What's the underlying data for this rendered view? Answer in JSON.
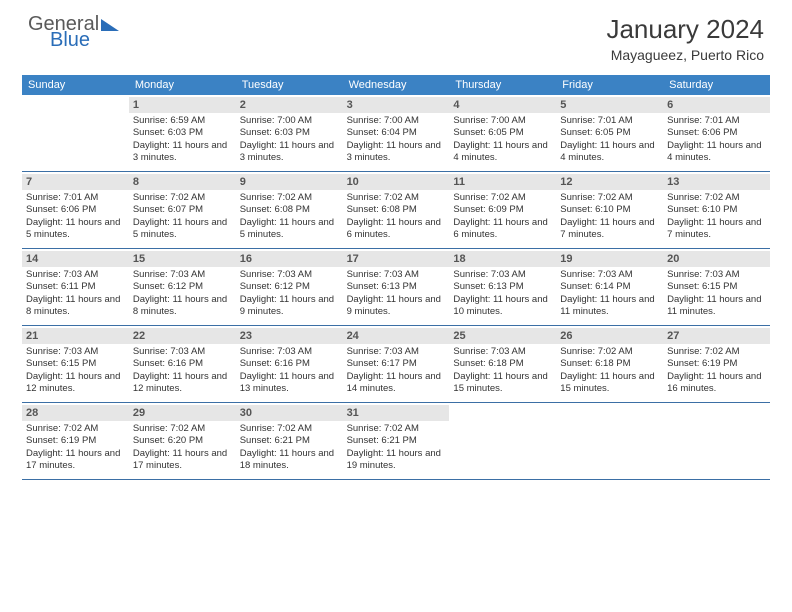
{
  "logo": {
    "top": "General",
    "bottom": "Blue"
  },
  "title": "January 2024",
  "subtitle": "Mayagueez, Puerto Rico",
  "colors": {
    "header_bg": "#3b82c4",
    "header_text": "#ffffff",
    "daynum_bg": "#e6e6e6",
    "week_border": "#3b6fa5",
    "logo_gray": "#5a5a5a",
    "logo_blue": "#2a6db8"
  },
  "day_names": [
    "Sunday",
    "Monday",
    "Tuesday",
    "Wednesday",
    "Thursday",
    "Friday",
    "Saturday"
  ],
  "weeks": [
    [
      {
        "day": "",
        "sunrise": "",
        "sunset": "",
        "daylight": ""
      },
      {
        "day": "1",
        "sunrise": "6:59 AM",
        "sunset": "6:03 PM",
        "daylight": "11 hours and 3 minutes."
      },
      {
        "day": "2",
        "sunrise": "7:00 AM",
        "sunset": "6:03 PM",
        "daylight": "11 hours and 3 minutes."
      },
      {
        "day": "3",
        "sunrise": "7:00 AM",
        "sunset": "6:04 PM",
        "daylight": "11 hours and 3 minutes."
      },
      {
        "day": "4",
        "sunrise": "7:00 AM",
        "sunset": "6:05 PM",
        "daylight": "11 hours and 4 minutes."
      },
      {
        "day": "5",
        "sunrise": "7:01 AM",
        "sunset": "6:05 PM",
        "daylight": "11 hours and 4 minutes."
      },
      {
        "day": "6",
        "sunrise": "7:01 AM",
        "sunset": "6:06 PM",
        "daylight": "11 hours and 4 minutes."
      }
    ],
    [
      {
        "day": "7",
        "sunrise": "7:01 AM",
        "sunset": "6:06 PM",
        "daylight": "11 hours and 5 minutes."
      },
      {
        "day": "8",
        "sunrise": "7:02 AM",
        "sunset": "6:07 PM",
        "daylight": "11 hours and 5 minutes."
      },
      {
        "day": "9",
        "sunrise": "7:02 AM",
        "sunset": "6:08 PM",
        "daylight": "11 hours and 5 minutes."
      },
      {
        "day": "10",
        "sunrise": "7:02 AM",
        "sunset": "6:08 PM",
        "daylight": "11 hours and 6 minutes."
      },
      {
        "day": "11",
        "sunrise": "7:02 AM",
        "sunset": "6:09 PM",
        "daylight": "11 hours and 6 minutes."
      },
      {
        "day": "12",
        "sunrise": "7:02 AM",
        "sunset": "6:10 PM",
        "daylight": "11 hours and 7 minutes."
      },
      {
        "day": "13",
        "sunrise": "7:02 AM",
        "sunset": "6:10 PM",
        "daylight": "11 hours and 7 minutes."
      }
    ],
    [
      {
        "day": "14",
        "sunrise": "7:03 AM",
        "sunset": "6:11 PM",
        "daylight": "11 hours and 8 minutes."
      },
      {
        "day": "15",
        "sunrise": "7:03 AM",
        "sunset": "6:12 PM",
        "daylight": "11 hours and 8 minutes."
      },
      {
        "day": "16",
        "sunrise": "7:03 AM",
        "sunset": "6:12 PM",
        "daylight": "11 hours and 9 minutes."
      },
      {
        "day": "17",
        "sunrise": "7:03 AM",
        "sunset": "6:13 PM",
        "daylight": "11 hours and 9 minutes."
      },
      {
        "day": "18",
        "sunrise": "7:03 AM",
        "sunset": "6:13 PM",
        "daylight": "11 hours and 10 minutes."
      },
      {
        "day": "19",
        "sunrise": "7:03 AM",
        "sunset": "6:14 PM",
        "daylight": "11 hours and 11 minutes."
      },
      {
        "day": "20",
        "sunrise": "7:03 AM",
        "sunset": "6:15 PM",
        "daylight": "11 hours and 11 minutes."
      }
    ],
    [
      {
        "day": "21",
        "sunrise": "7:03 AM",
        "sunset": "6:15 PM",
        "daylight": "11 hours and 12 minutes."
      },
      {
        "day": "22",
        "sunrise": "7:03 AM",
        "sunset": "6:16 PM",
        "daylight": "11 hours and 12 minutes."
      },
      {
        "day": "23",
        "sunrise": "7:03 AM",
        "sunset": "6:16 PM",
        "daylight": "11 hours and 13 minutes."
      },
      {
        "day": "24",
        "sunrise": "7:03 AM",
        "sunset": "6:17 PM",
        "daylight": "11 hours and 14 minutes."
      },
      {
        "day": "25",
        "sunrise": "7:03 AM",
        "sunset": "6:18 PM",
        "daylight": "11 hours and 15 minutes."
      },
      {
        "day": "26",
        "sunrise": "7:02 AM",
        "sunset": "6:18 PM",
        "daylight": "11 hours and 15 minutes."
      },
      {
        "day": "27",
        "sunrise": "7:02 AM",
        "sunset": "6:19 PM",
        "daylight": "11 hours and 16 minutes."
      }
    ],
    [
      {
        "day": "28",
        "sunrise": "7:02 AM",
        "sunset": "6:19 PM",
        "daylight": "11 hours and 17 minutes."
      },
      {
        "day": "29",
        "sunrise": "7:02 AM",
        "sunset": "6:20 PM",
        "daylight": "11 hours and 17 minutes."
      },
      {
        "day": "30",
        "sunrise": "7:02 AM",
        "sunset": "6:21 PM",
        "daylight": "11 hours and 18 minutes."
      },
      {
        "day": "31",
        "sunrise": "7:02 AM",
        "sunset": "6:21 PM",
        "daylight": "11 hours and 19 minutes."
      },
      {
        "day": "",
        "sunrise": "",
        "sunset": "",
        "daylight": ""
      },
      {
        "day": "",
        "sunrise": "",
        "sunset": "",
        "daylight": ""
      },
      {
        "day": "",
        "sunrise": "",
        "sunset": "",
        "daylight": ""
      }
    ]
  ],
  "labels": {
    "sunrise": "Sunrise:",
    "sunset": "Sunset:",
    "daylight": "Daylight:"
  }
}
